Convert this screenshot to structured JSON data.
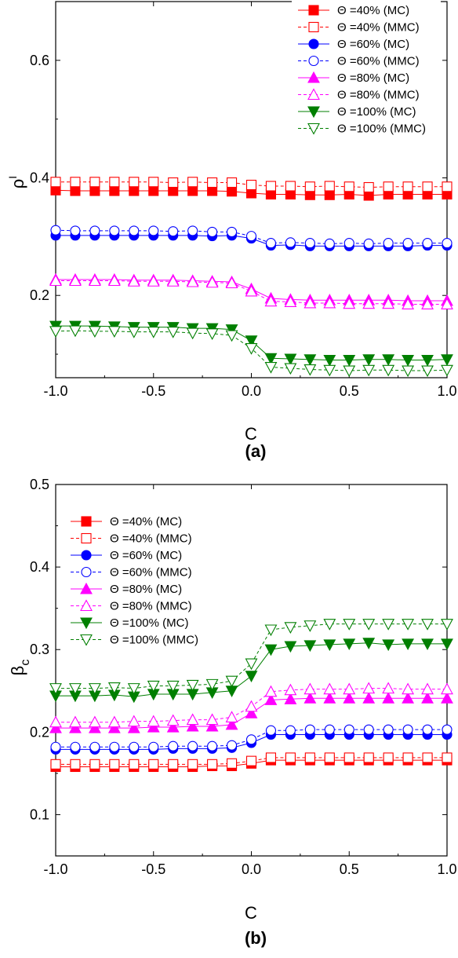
{
  "chart_data": [
    {
      "type": "line",
      "panel_label": "(a)",
      "xlabel": "C",
      "ylabel_main": "ρ",
      "ylabel_sup": "I",
      "xlim": [
        -1.0,
        1.0
      ],
      "ylim": [
        0.06,
        0.7
      ],
      "xticks": [
        -1.0,
        -0.5,
        0.0,
        0.5,
        1.0
      ],
      "xtick_labels": [
        "-1.0",
        "-0.5",
        "0.0",
        "0.5",
        "1.0"
      ],
      "yticks": [
        0.2,
        0.4,
        0.6
      ],
      "ytick_labels": [
        "0.2",
        "0.4",
        "0.6"
      ],
      "legend_position": "top-right",
      "grid": false,
      "x": [
        -1.0,
        -0.9,
        -0.8,
        -0.7,
        -0.6,
        -0.5,
        -0.4,
        -0.3,
        -0.2,
        -0.1,
        0.0,
        0.1,
        0.2,
        0.3,
        0.4,
        0.5,
        0.6,
        0.7,
        0.8,
        0.9,
        1.0
      ],
      "series": [
        {
          "name": "Θ =40% (MC)",
          "color": "#ff0000",
          "marker": "square",
          "filled": true,
          "dashed": false,
          "values": [
            0.379,
            0.378,
            0.378,
            0.378,
            0.378,
            0.378,
            0.378,
            0.378,
            0.378,
            0.377,
            0.374,
            0.372,
            0.372,
            0.371,
            0.371,
            0.372,
            0.37,
            0.372,
            0.372,
            0.372,
            0.372
          ]
        },
        {
          "name": "Θ =40% (MMC)",
          "color": "#ff0000",
          "marker": "square",
          "filled": false,
          "dashed": true,
          "values": [
            0.393,
            0.393,
            0.393,
            0.393,
            0.393,
            0.393,
            0.392,
            0.393,
            0.392,
            0.392,
            0.388,
            0.386,
            0.386,
            0.385,
            0.386,
            0.385,
            0.384,
            0.385,
            0.385,
            0.385,
            0.385
          ]
        },
        {
          "name": "Θ =60% (MC)",
          "color": "#0000ff",
          "marker": "circle",
          "filled": true,
          "dashed": false,
          "values": [
            0.302,
            0.302,
            0.302,
            0.302,
            0.302,
            0.302,
            0.302,
            0.302,
            0.301,
            0.302,
            0.297,
            0.285,
            0.286,
            0.284,
            0.284,
            0.284,
            0.284,
            0.284,
            0.284,
            0.285,
            0.285
          ]
        },
        {
          "name": "Θ =60% (MMC)",
          "color": "#0000ff",
          "marker": "circle",
          "filled": false,
          "dashed": true,
          "values": [
            0.311,
            0.31,
            0.31,
            0.31,
            0.31,
            0.31,
            0.309,
            0.31,
            0.308,
            0.308,
            0.301,
            0.289,
            0.29,
            0.289,
            0.288,
            0.289,
            0.288,
            0.289,
            0.289,
            0.289,
            0.289
          ]
        },
        {
          "name": "Θ =80% (MC)",
          "color": "#ff00ff",
          "marker": "triangle-up",
          "filled": true,
          "dashed": false,
          "values": [
            0.227,
            0.227,
            0.227,
            0.227,
            0.226,
            0.226,
            0.226,
            0.225,
            0.224,
            0.223,
            0.211,
            0.195,
            0.193,
            0.192,
            0.192,
            0.192,
            0.192,
            0.192,
            0.191,
            0.191,
            0.191
          ]
        },
        {
          "name": "Θ =80% (MMC)",
          "color": "#ff00ff",
          "marker": "triangle-up",
          "filled": false,
          "dashed": true,
          "values": [
            0.225,
            0.225,
            0.225,
            0.225,
            0.224,
            0.224,
            0.224,
            0.223,
            0.222,
            0.221,
            0.207,
            0.19,
            0.189,
            0.187,
            0.187,
            0.186,
            0.186,
            0.186,
            0.185,
            0.185,
            0.185
          ]
        },
        {
          "name": "Θ =100% (MC)",
          "color": "#007f00",
          "marker": "triangle-down",
          "filled": true,
          "dashed": false,
          "values": [
            0.148,
            0.148,
            0.148,
            0.147,
            0.146,
            0.146,
            0.146,
            0.144,
            0.144,
            0.142,
            0.123,
            0.093,
            0.092,
            0.091,
            0.09,
            0.09,
            0.091,
            0.091,
            0.09,
            0.09,
            0.091
          ]
        },
        {
          "name": "Θ =100% (MMC)",
          "color": "#007f00",
          "marker": "triangle-down",
          "filled": false,
          "dashed": true,
          "values": [
            0.139,
            0.14,
            0.139,
            0.139,
            0.138,
            0.138,
            0.138,
            0.136,
            0.135,
            0.132,
            0.11,
            0.078,
            0.076,
            0.074,
            0.073,
            0.072,
            0.073,
            0.073,
            0.072,
            0.072,
            0.073
          ]
        }
      ]
    },
    {
      "type": "line",
      "panel_label": "(b)",
      "xlabel": "C",
      "ylabel_main": "β",
      "ylabel_sub": "c",
      "xlim": [
        -1.0,
        1.0
      ],
      "ylim": [
        0.05,
        0.5
      ],
      "xticks": [
        -1.0,
        -0.5,
        0.0,
        0.5,
        1.0
      ],
      "xtick_labels": [
        "-1.0",
        "-0.5",
        "0.0",
        "0.5",
        "1.0"
      ],
      "yticks": [
        0.1,
        0.2,
        0.3,
        0.4,
        0.5
      ],
      "ytick_labels": [
        "0.1",
        "0.2",
        "0.3",
        "0.4",
        "0.5"
      ],
      "legend_position": "top-left",
      "grid": false,
      "x": [
        -1.0,
        -0.9,
        -0.8,
        -0.7,
        -0.6,
        -0.5,
        -0.4,
        -0.3,
        -0.2,
        -0.1,
        0.0,
        0.1,
        0.2,
        0.3,
        0.4,
        0.5,
        0.6,
        0.7,
        0.8,
        0.9,
        1.0
      ],
      "series": [
        {
          "name": "Θ =40% (MC)",
          "color": "#ff0000",
          "marker": "square",
          "filled": true,
          "dashed": false,
          "values": [
            0.158,
            0.158,
            0.158,
            0.158,
            0.158,
            0.158,
            0.158,
            0.158,
            0.159,
            0.159,
            0.162,
            0.166,
            0.166,
            0.166,
            0.166,
            0.166,
            0.166,
            0.166,
            0.166,
            0.166,
            0.166
          ]
        },
        {
          "name": "Θ =40% (MMC)",
          "color": "#ff0000",
          "marker": "square",
          "filled": false,
          "dashed": true,
          "values": [
            0.161,
            0.161,
            0.161,
            0.161,
            0.161,
            0.161,
            0.161,
            0.161,
            0.161,
            0.162,
            0.165,
            0.169,
            0.169,
            0.169,
            0.169,
            0.169,
            0.169,
            0.169,
            0.169,
            0.169,
            0.169
          ]
        },
        {
          "name": "Θ =60% (MC)",
          "color": "#0000ff",
          "marker": "circle",
          "filled": true,
          "dashed": false,
          "values": [
            0.179,
            0.179,
            0.179,
            0.179,
            0.179,
            0.179,
            0.18,
            0.18,
            0.18,
            0.181,
            0.187,
            0.197,
            0.197,
            0.197,
            0.197,
            0.197,
            0.197,
            0.197,
            0.197,
            0.197,
            0.197
          ]
        },
        {
          "name": "Θ =60% (MMC)",
          "color": "#0000ff",
          "marker": "circle",
          "filled": false,
          "dashed": true,
          "values": [
            0.182,
            0.182,
            0.182,
            0.182,
            0.182,
            0.182,
            0.183,
            0.183,
            0.183,
            0.184,
            0.191,
            0.202,
            0.202,
            0.203,
            0.203,
            0.203,
            0.203,
            0.203,
            0.203,
            0.203,
            0.203
          ]
        },
        {
          "name": "Θ =80% (MC)",
          "color": "#ff00ff",
          "marker": "triangle-up",
          "filled": true,
          "dashed": false,
          "values": [
            0.205,
            0.205,
            0.205,
            0.205,
            0.205,
            0.206,
            0.206,
            0.207,
            0.207,
            0.209,
            0.223,
            0.239,
            0.24,
            0.241,
            0.241,
            0.241,
            0.241,
            0.241,
            0.241,
            0.241,
            0.241
          ]
        },
        {
          "name": "Θ =80% (MMC)",
          "color": "#ff00ff",
          "marker": "triangle-up",
          "filled": false,
          "dashed": true,
          "values": [
            0.212,
            0.212,
            0.212,
            0.212,
            0.213,
            0.213,
            0.214,
            0.215,
            0.215,
            0.218,
            0.231,
            0.249,
            0.251,
            0.252,
            0.252,
            0.252,
            0.253,
            0.253,
            0.252,
            0.252,
            0.252
          ]
        },
        {
          "name": "Θ =100% (MC)",
          "color": "#007f00",
          "marker": "triangle-down",
          "filled": true,
          "dashed": false,
          "values": [
            0.244,
            0.244,
            0.244,
            0.245,
            0.243,
            0.246,
            0.246,
            0.246,
            0.248,
            0.25,
            0.268,
            0.3,
            0.304,
            0.305,
            0.306,
            0.307,
            0.308,
            0.306,
            0.307,
            0.307,
            0.307
          ]
        },
        {
          "name": "Θ =100% (MMC)",
          "color": "#007f00",
          "marker": "triangle-down",
          "filled": false,
          "dashed": true,
          "values": [
            0.253,
            0.253,
            0.253,
            0.254,
            0.253,
            0.256,
            0.256,
            0.257,
            0.258,
            0.262,
            0.283,
            0.324,
            0.327,
            0.329,
            0.331,
            0.331,
            0.331,
            0.331,
            0.331,
            0.331,
            0.331
          ]
        }
      ]
    }
  ]
}
